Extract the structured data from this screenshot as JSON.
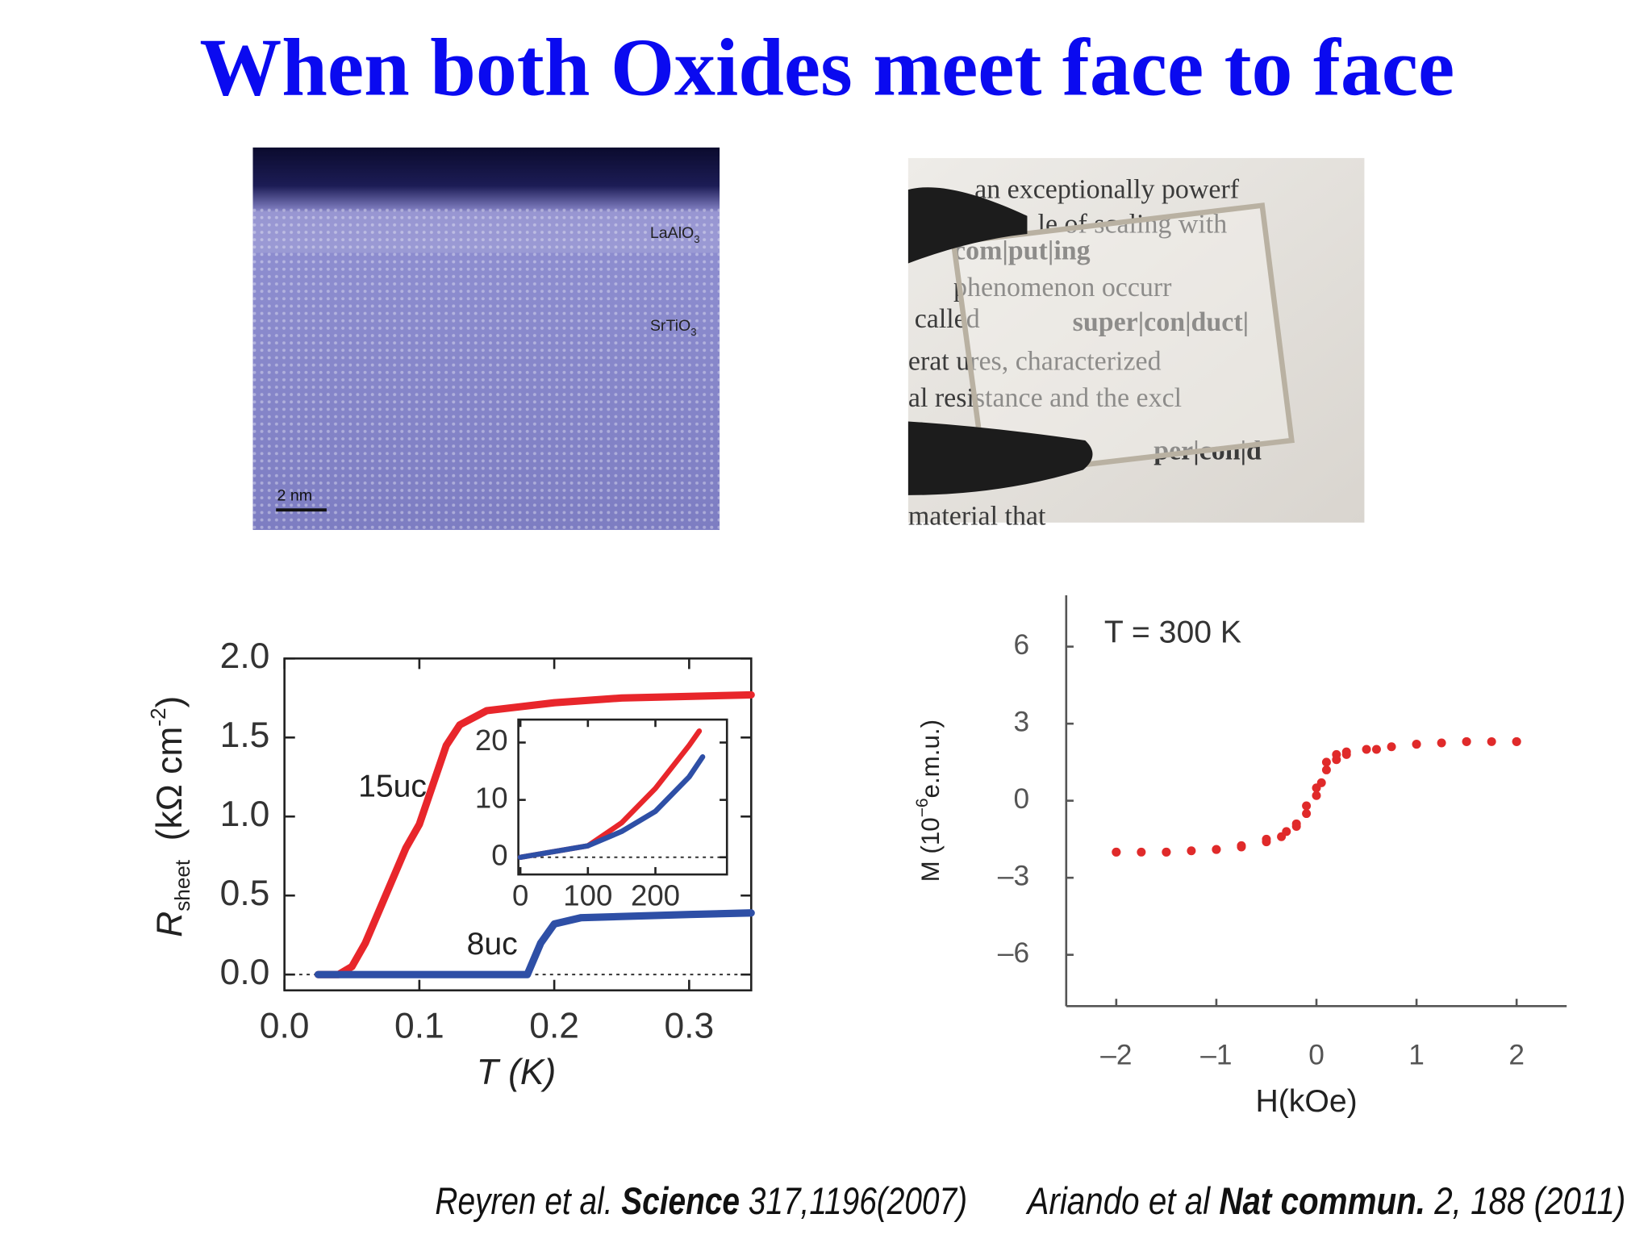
{
  "title": "When both Oxides meet face to face",
  "images": [
    {
      "labels": [
        {
          "text": "LaAlO",
          "sub": "3"
        },
        {
          "text": "SrTiO",
          "sub": "3"
        }
      ],
      "scale_bar": "2 nm"
    },
    {
      "text_lines": [
        "an exceptionally powerf",
        "le of scaling with",
        "com|put|ing",
        "phenomenon occurr",
        "called",
        "super|con|duct|",
        "erat ures, characterized",
        "al resistance and the excl",
        "per|con|d",
        "material that"
      ]
    }
  ],
  "chart_data": [
    {
      "type": "line",
      "x_label": "T (K)",
      "y_label": [
        {
          "text": "R"
        },
        {
          "text": "sheet",
          "shift": "sub"
        },
        {
          "text": "(kΩ cm"
        },
        {
          "text": "-2",
          "shift": "sup"
        },
        {
          "text": ")"
        }
      ],
      "xlim": [
        0,
        0.346
      ],
      "xticks": [
        {
          "value": 0,
          "label": "0.0"
        },
        0.1,
        0.2,
        0.3
      ],
      "ylim": [
        -0.1,
        2.0
      ],
      "yticks": [
        {
          "value": 0,
          "label": "0.0"
        },
        0.5,
        {
          "value": 1,
          "label": "1.0"
        },
        1.5,
        {
          "value": 2,
          "label": "2.0"
        }
      ],
      "frame": "box",
      "zero_line": true,
      "series": [
        {
          "name": "15uc",
          "color": "#e8262b",
          "x": [
            0.025,
            0.04,
            0.05,
            0.06,
            0.07,
            0.08,
            0.09,
            0.1,
            0.11,
            0.12,
            0.13,
            0.15,
            0.2,
            0.25,
            0.3,
            0.346
          ],
          "values": [
            0,
            0,
            0.05,
            0.2,
            0.4,
            0.6,
            0.8,
            0.95,
            1.2,
            1.45,
            1.58,
            1.67,
            1.72,
            1.75,
            1.76,
            1.77
          ]
        },
        {
          "name": "8uc",
          "color": "#2e4fa6",
          "x": [
            0.025,
            0.18,
            0.19,
            0.2,
            0.22,
            0.3,
            0.346
          ],
          "values": [
            0,
            0,
            0.2,
            0.32,
            0.36,
            0.38,
            0.39
          ]
        }
      ]
    },
    {
      "type": "line",
      "xlim": [
        -3,
        306
      ],
      "xticks": [
        0,
        100,
        200
      ],
      "ylim": [
        -3,
        24
      ],
      "yticks": [
        0,
        10,
        20
      ],
      "frame": "box",
      "zero_line": true,
      "series": [
        {
          "color": "#e8262b",
          "x": [
            0,
            100,
            150,
            200,
            250,
            265
          ],
          "values": [
            0,
            2,
            6,
            12,
            19.5,
            22
          ]
        },
        {
          "color": "#2e4fa6",
          "x": [
            0,
            100,
            150,
            200,
            250,
            270
          ],
          "values": [
            0,
            2,
            4.5,
            8,
            14,
            17.5
          ]
        }
      ]
    },
    {
      "type": "scatter",
      "annotation": "T = 300 K",
      "x_label": "H(kOe)",
      "y_label": [
        {
          "text": "M (10"
        },
        {
          "text": "−6",
          "shift": "sup"
        },
        {
          "text": "e.m.u.)"
        }
      ],
      "xlim": [
        -2.5,
        2.5
      ],
      "xticks": [
        {
          "value": -2,
          "label": "–2"
        },
        {
          "value": -1,
          "label": "–1"
        },
        0,
        1,
        2
      ],
      "ylim": [
        -8,
        8
      ],
      "yticks": [
        6,
        3,
        0,
        {
          "value": -3,
          "label": "–3"
        },
        {
          "value": -6,
          "label": "–6"
        }
      ],
      "frame": "open",
      "series": [
        {
          "color": "#e02a2a",
          "x": [
            -2,
            -1.75,
            -1.5,
            -1.25,
            -1,
            -0.75,
            -0.5,
            -0.35,
            -0.2,
            -0.1,
            0,
            0.05,
            0.1,
            0.2,
            0.3,
            0.5,
            0.75,
            1,
            1.25,
            1.5,
            1.75,
            2
          ],
          "values": [
            -2.0,
            -2.0,
            -2.0,
            -1.95,
            -1.9,
            -1.8,
            -1.6,
            -1.4,
            -1.0,
            -0.5,
            0.2,
            0.7,
            1.2,
            1.8,
            1.9,
            2.0,
            2.1,
            2.2,
            2.25,
            2.3,
            2.3,
            2.3
          ]
        },
        {
          "color": "#e02a2a",
          "x": [
            2,
            1.5,
            1,
            0.6,
            0.3,
            0.2,
            0.1,
            0,
            -0.1,
            -0.2,
            -0.3,
            -0.5,
            -0.75,
            -1,
            -1.5,
            -2
          ],
          "values": [
            2.3,
            2.3,
            2.2,
            2.0,
            1.8,
            1.6,
            1.5,
            0.5,
            -0.2,
            -0.9,
            -1.2,
            -1.5,
            -1.75,
            -1.9,
            -2.0,
            -2.0
          ]
        }
      ]
    }
  ],
  "citations": [
    [
      {
        "text": "Reyren et al."
      },
      {
        "text": "Science",
        "bold": true
      },
      {
        "text": "317,1196(2007)"
      }
    ],
    [
      {
        "text": "Ariando et al"
      },
      {
        "text": "Nat commun.",
        "bold": true
      },
      {
        "text": "2, 188 (2011)"
      }
    ]
  ]
}
